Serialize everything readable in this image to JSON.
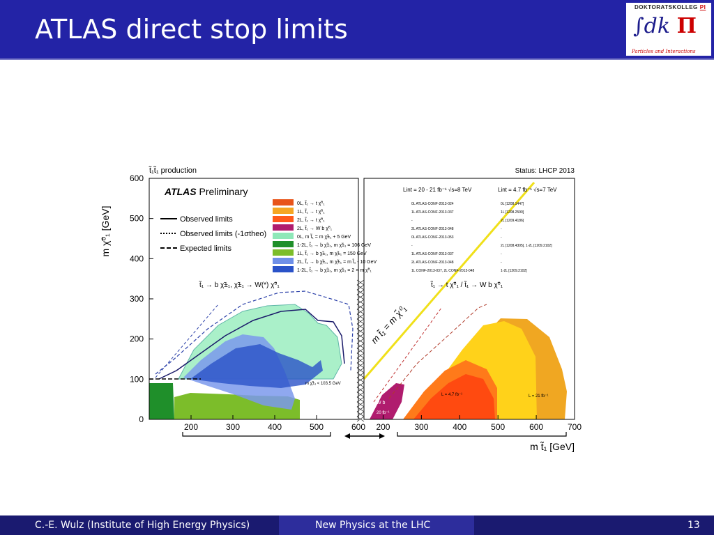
{
  "slide": {
    "title": "ATLAS direct stop limits",
    "footer_author": "C.-E. Wulz (Institute of High Energy Physics)",
    "footer_center": "New Physics at the LHC",
    "page_number": "13"
  },
  "logo": {
    "top_text": "DOKTORATSKOLLEG",
    "top_badge": "PI",
    "main_text": "∫dk",
    "pi_symbol": "Π",
    "sub_text": "Particles and Interactions"
  },
  "chart_data": {
    "type": "area",
    "title": "t̃₁t̃₁ production",
    "status": "Status: LHCP 2013",
    "brand": "ATLAS",
    "brand_suffix": "Preliminary",
    "ylabel": "m χ̃⁰₁ [GeV]",
    "xlabel": "m t̃₁ [GeV]",
    "ylim": [
      0,
      600
    ],
    "y_ticks": [
      0,
      100,
      200,
      300,
      400,
      500,
      600
    ],
    "left_panel": {
      "xlim": [
        100,
        600
      ],
      "x_ticks": [
        200,
        300,
        400,
        500,
        600
      ],
      "decay_label": "t̃₁ → b χ̃±₁, χ̃±₁ → W(*) χ̃⁰₁",
      "annotation_mchargino": "m χ̃±₁ < 103.5 GeV"
    },
    "right_panel": {
      "xlim": [
        150,
        700
      ],
      "x_ticks": [
        200,
        300,
        400,
        500,
        600,
        700
      ],
      "decay_label": "t̃₁ → t χ̃⁰₁ / t̃₁ → W b χ̃⁰₁",
      "diagonal_label": "m t̃₁ = m χ̃⁰₁",
      "lumi_a": "L = 4.7 fb⁻¹",
      "lumi_b": "L = 21 fb⁻¹",
      "wb_label": "W b",
      "wb_lumi": "20 fb⁻¹"
    },
    "line_styles": [
      {
        "label": "Observed limits",
        "style": "solid"
      },
      {
        "label": "Observed limits (-1σtheo)",
        "style": "dotted"
      },
      {
        "label": "Expected limits",
        "style": "dashed"
      }
    ],
    "lumi_headers": [
      "Lint = 20 - 21 fb⁻¹ √s=8 TeV",
      "Lint = 4.7 fb⁻¹ √s=7 TeV"
    ],
    "series": [
      {
        "name": "0L, t̃₁ → t χ̃⁰₁",
        "color": "#e8541a",
        "ref8": "0L ATLAS-CONF-2013-024",
        "ref7": "0L [1208.1447]"
      },
      {
        "name": "1L, t̃₁ → t χ̃⁰₁",
        "color": "#f5a623",
        "ref8": "1L ATLAS-CONF-2013-037",
        "ref7": "1L [1208.2590]"
      },
      {
        "name": "2L, t̃₁ → t χ̃⁰₁",
        "color": "#ff5a1a",
        "ref8": "-",
        "ref7": "2L [1209.4186]"
      },
      {
        "name": "2L, t̃₁ → W b χ̃⁰₁",
        "color": "#b01c6e",
        "ref8": "2L ATLAS-CONF-2013-048",
        "ref7": "-"
      },
      {
        "name": "0L, m t̃₁ = m χ̃±₁ + 5 GeV",
        "color": "#8ee8b8",
        "ref8": "0L ATLAS-CONF-2013-053",
        "ref7": "-"
      },
      {
        "name": "1-2L, t̃₁ → b χ̃±₁, m χ̃±₁ = 106 GeV",
        "color": "#1f8f2a",
        "ref8": "-",
        "ref7": "2L [1208.4305], 1-2L [1209.2102]"
      },
      {
        "name": "1L, t̃₁ → b χ̃±₁, m χ̃±₁ = 150 GeV",
        "color": "#7cbd2a",
        "ref8": "1L ATLAS-CONF-2013-037",
        "ref7": "-"
      },
      {
        "name": "2L, t̃₁ → b χ̃±₁, m χ̃±₁ = m t̃₁ - 10 GeV",
        "color": "#6e8fe8",
        "ref8": "2L ATLAS-CONF-2013-048",
        "ref7": "-"
      },
      {
        "name": "1-2L, t̃₁ → b χ̃±₁, m χ̃±₁ = 2 × m χ̃⁰₁",
        "color": "#2a52c8",
        "ref8": "1L CONF-2013-037, 2L CONF-2013-048",
        "ref7": "1-2L [1209.2102]"
      }
    ],
    "legend_placement": "top-center"
  }
}
